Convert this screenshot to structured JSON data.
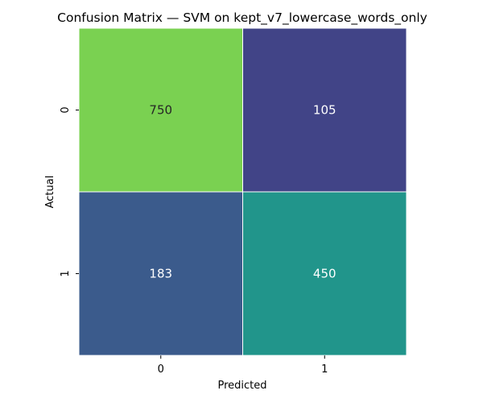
{
  "chart_data": {
    "type": "heatmap",
    "title": "Confusion Matrix — SVM on kept_v7_lowercase_words_only",
    "xlabel": "Predicted",
    "ylabel": "Actual",
    "x_categories": [
      "0",
      "1"
    ],
    "y_categories": [
      "0",
      "1"
    ],
    "values": [
      [
        750,
        105
      ],
      [
        183,
        450
      ]
    ],
    "cell_colors": [
      [
        "#7ad151",
        "#414487"
      ],
      [
        "#3b5b8c",
        "#21958b"
      ]
    ],
    "cell_text_colors": [
      [
        "#262626",
        "#ffffff"
      ],
      [
        "#ffffff",
        "#ffffff"
      ]
    ],
    "colormap": "viridis",
    "colorbar": false,
    "grid_line_color": "#ffffff"
  }
}
